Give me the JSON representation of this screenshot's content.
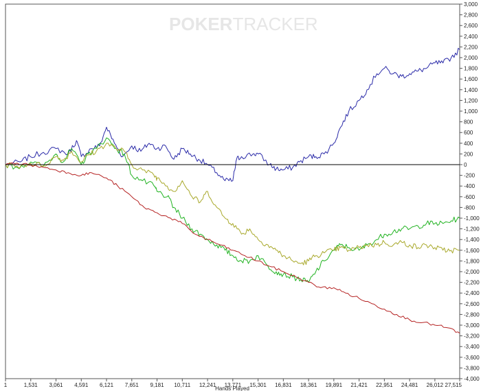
{
  "watermark": {
    "part1": "POKER",
    "part2": "TRACKER"
  },
  "chart_data": {
    "type": "line",
    "title": "",
    "xlabel": "Hands Played",
    "ylabel": "",
    "xlim": [
      1,
      27515
    ],
    "ylim": [
      -4000,
      3000
    ],
    "x_ticks": [
      "1",
      "1,531",
      "3,061",
      "4,591",
      "6,121",
      "7,651",
      "9,181",
      "10,711",
      "12,241",
      "13,771",
      "15,301",
      "16,831",
      "18,361",
      "19,891",
      "21,421",
      "22,951",
      "24,481",
      "26,012",
      "27,515"
    ],
    "y_ticks": [
      "3,000",
      "2,800",
      "2,600",
      "2,400",
      "2,200",
      "2,000",
      "1,800",
      "1,600",
      "1,400",
      "1,200",
      "1,000",
      "800",
      "600",
      "400",
      "200",
      "0",
      "-200",
      "-400",
      "-600",
      "-800",
      "-1,000",
      "-1,200",
      "-1,400",
      "-1,600",
      "-1,800",
      "-2,000",
      "-2,200",
      "-2,400",
      "-2,600",
      "-2,800",
      "-3,000",
      "-3,200",
      "-3,400",
      "-3,600",
      "-3,800",
      "-4,000"
    ],
    "series": [
      {
        "color": "#2a2aa8",
        "x": [
          1,
          900,
          1500,
          2300,
          3061,
          3800,
          4300,
          4591,
          5200,
          5700,
          6121,
          6600,
          7100,
          7651,
          8200,
          8700,
          9181,
          9700,
          10200,
          10711,
          11200,
          11700,
          12241,
          12800,
          13300,
          13771,
          14000,
          14300,
          15000,
          15301,
          16000,
          16400,
          16831,
          17400,
          17800,
          18361,
          18800,
          19300,
          19891,
          20300,
          20800,
          21421,
          21900,
          22500,
          22951,
          23500,
          24000,
          24481,
          25000,
          25500,
          26012,
          26500,
          27000,
          27515
        ],
        "values": [
          0,
          50,
          150,
          230,
          300,
          200,
          450,
          150,
          300,
          350,
          700,
          400,
          150,
          350,
          250,
          400,
          300,
          350,
          100,
          300,
          200,
          100,
          0,
          -150,
          -300,
          -300,
          100,
          150,
          200,
          200,
          0,
          -80,
          -100,
          -50,
          50,
          150,
          150,
          200,
          400,
          700,
          1000,
          1200,
          1400,
          1700,
          1800,
          1700,
          1650,
          1700,
          1750,
          1800,
          1900,
          1900,
          2000,
          2150
        ]
      },
      {
        "color": "#1fb21f",
        "x": [
          1,
          700,
          1531,
          2300,
          3061,
          3500,
          4000,
          4591,
          5000,
          5500,
          6121,
          6700,
          7200,
          7651,
          8300,
          9000,
          9181,
          9800,
          10200,
          10711,
          11300,
          11800,
          12241,
          12800,
          13300,
          13771,
          14300,
          14800,
          15301,
          15900,
          16400,
          16831,
          17400,
          17900,
          18361,
          18800,
          19300,
          19891,
          20300,
          20800,
          21421,
          21900,
          22500,
          22951,
          23500,
          24000,
          24481,
          25000,
          25500,
          26012,
          26500,
          27000,
          27515
        ],
        "values": [
          0,
          -50,
          50,
          -30,
          200,
          50,
          300,
          0,
          200,
          300,
          500,
          300,
          200,
          -200,
          -300,
          -400,
          -500,
          -600,
          -800,
          -1000,
          -1200,
          -1300,
          -1400,
          -1500,
          -1600,
          -1700,
          -1800,
          -1800,
          -1700,
          -1900,
          -2000,
          -2050,
          -2100,
          -2150,
          -2200,
          -2000,
          -1800,
          -1600,
          -1500,
          -1550,
          -1600,
          -1500,
          -1400,
          -1300,
          -1250,
          -1200,
          -1200,
          -1150,
          -1100,
          -1100,
          -1100,
          -1050,
          -1000
        ]
      },
      {
        "color": "#a8a82a",
        "x": [
          1,
          700,
          1531,
          2300,
          3061,
          3500,
          4000,
          4591,
          5000,
          5500,
          6121,
          6700,
          7200,
          7651,
          8300,
          9000,
          9181,
          9800,
          10200,
          10711,
          11300,
          11800,
          12241,
          12800,
          13300,
          13771,
          14300,
          14800,
          15301,
          15900,
          16400,
          16831,
          17400,
          17900,
          18361,
          18800,
          19300,
          19891,
          20300,
          20800,
          21421,
          21900,
          22500,
          22951,
          23500,
          24000,
          24481,
          25000,
          25500,
          26012,
          26500,
          27000,
          27515
        ],
        "values": [
          0,
          -30,
          20,
          -20,
          150,
          80,
          250,
          50,
          180,
          250,
          400,
          300,
          250,
          0,
          -100,
          -200,
          -250,
          -400,
          -500,
          -300,
          -600,
          -700,
          -500,
          -800,
          -1000,
          -1100,
          -1300,
          -1200,
          -1400,
          -1500,
          -1600,
          -1700,
          -1800,
          -1850,
          -1800,
          -1700,
          -1650,
          -1600,
          -1550,
          -1600,
          -1550,
          -1500,
          -1500,
          -1450,
          -1500,
          -1450,
          -1500,
          -1550,
          -1500,
          -1550,
          -1600,
          -1600,
          -1600
        ]
      },
      {
        "color": "#b52222",
        "x": [
          1,
          700,
          1531,
          2300,
          3061,
          3800,
          4591,
          5200,
          6121,
          6800,
          7651,
          8400,
          9181,
          10000,
          10711,
          11500,
          12241,
          13000,
          13771,
          14500,
          15301,
          16000,
          16831,
          17600,
          18361,
          19100,
          19891,
          20600,
          21421,
          22200,
          22951,
          23700,
          24481,
          25300,
          26012,
          26800,
          27515
        ],
        "values": [
          0,
          30,
          -10,
          -50,
          -100,
          -150,
          -200,
          -150,
          -250,
          -400,
          -600,
          -800,
          -900,
          -1000,
          -1100,
          -1300,
          -1400,
          -1500,
          -1600,
          -1700,
          -1800,
          -1900,
          -2000,
          -2100,
          -2200,
          -2300,
          -2300,
          -2400,
          -2500,
          -2600,
          -2700,
          -2800,
          -2900,
          -2950,
          -3000,
          -3050,
          -3150
        ]
      }
    ],
    "grid": false,
    "legend": "none"
  }
}
